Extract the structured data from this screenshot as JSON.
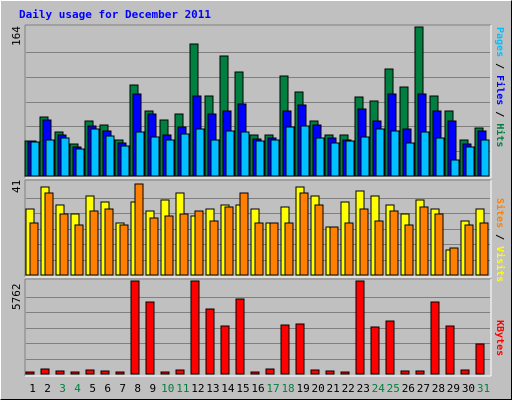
{
  "title": "Daily usage for December 2011",
  "colors": {
    "hits": "#008040",
    "files": "#0000ff",
    "pages": "#00c0ff",
    "visits": "#ffff00",
    "sites": "#ff8000",
    "kbytes": "#ff0000",
    "weekend_label": "#008040",
    "weekday_label": "#000000"
  },
  "chart_data": [
    {
      "type": "bar",
      "title": "Daily usage for December 2011",
      "panel": "hits_files_pages",
      "ylabel": "164",
      "ymax": 164,
      "x": [
        "1",
        "2",
        "3",
        "4",
        "5",
        "6",
        "7",
        "8",
        "9",
        "10",
        "11",
        "12",
        "13",
        "14",
        "15",
        "16",
        "17",
        "18",
        "19",
        "20",
        "21",
        "22",
        "23",
        "24",
        "25",
        "26",
        "27",
        "28",
        "29",
        "30",
        "31"
      ],
      "series": [
        {
          "name": "Hits",
          "values": [
            38,
            65,
            48,
            35,
            60,
            56,
            40,
            100,
            72,
            62,
            68,
            145,
            88,
            132,
            115,
            45,
            45,
            110,
            92,
            60,
            45,
            45,
            87,
            82,
            118,
            98,
            164,
            88,
            72,
            40,
            53
          ]
        },
        {
          "name": "Files",
          "values": [
            38,
            62,
            45,
            32,
            55,
            50,
            36,
            90,
            68,
            45,
            54,
            88,
            68,
            72,
            79,
            41,
            42,
            72,
            78,
            56,
            42,
            40,
            74,
            60,
            90,
            52,
            90,
            72,
            60,
            35,
            50
          ]
        },
        {
          "name": "Pages",
          "values": [
            37,
            40,
            42,
            30,
            52,
            44,
            33,
            48,
            43,
            40,
            46,
            52,
            40,
            50,
            48,
            38,
            40,
            54,
            55,
            42,
            36,
            38,
            43,
            52,
            50,
            36,
            48,
            42,
            18,
            32,
            40
          ]
        }
      ],
      "legend": [
        "Pages",
        "Files",
        "Hits"
      ]
    },
    {
      "type": "bar",
      "panel": "visits_sites",
      "ylabel": "41",
      "ymax": 41,
      "x": [
        "1",
        "2",
        "3",
        "4",
        "5",
        "6",
        "7",
        "8",
        "9",
        "10",
        "11",
        "12",
        "13",
        "14",
        "15",
        "16",
        "17",
        "18",
        "19",
        "20",
        "21",
        "22",
        "23",
        "24",
        "25",
        "26",
        "27",
        "28",
        "29",
        "30",
        "31"
      ],
      "series": [
        {
          "name": "Visits",
          "values": [
            29,
            39,
            31,
            27,
            35,
            32,
            23,
            32,
            28,
            33,
            36,
            26,
            29,
            31,
            31,
            29,
            23,
            30,
            39,
            35,
            21,
            32,
            37,
            35,
            31,
            27,
            33,
            29,
            11,
            24,
            29
          ]
        },
        {
          "name": "Sites",
          "values": [
            23,
            36,
            27,
            22,
            28,
            29,
            22,
            40,
            25,
            26,
            27,
            28,
            24,
            30,
            36,
            23,
            23,
            23,
            36,
            31,
            21,
            23,
            29,
            24,
            28,
            22,
            30,
            27,
            12,
            22,
            23
          ]
        }
      ],
      "legend": [
        "Sites",
        "Visits"
      ]
    },
    {
      "type": "bar",
      "panel": "kbytes",
      "ylabel": "5762",
      "ymax": 5762,
      "x": [
        "1",
        "2",
        "3",
        "4",
        "5",
        "6",
        "7",
        "8",
        "9",
        "10",
        "11",
        "12",
        "13",
        "14",
        "15",
        "16",
        "17",
        "18",
        "19",
        "20",
        "21",
        "22",
        "23",
        "24",
        "25",
        "26",
        "27",
        "28",
        "29",
        "30",
        "31"
      ],
      "series": [
        {
          "name": "KBytes",
          "values": [
            130,
            300,
            170,
            150,
            230,
            160,
            140,
            5762,
            4450,
            140,
            230,
            5762,
            4050,
            2980,
            4660,
            140,
            300,
            3010,
            3100,
            230,
            160,
            150,
            5762,
            2930,
            3310,
            180,
            210,
            4460,
            2980,
            230,
            1840
          ]
        }
      ],
      "legend": [
        "KBytes"
      ]
    }
  ],
  "right_labels": {
    "panel1": [
      {
        "text": "Pages",
        "key": "pages"
      },
      {
        "text": " / ",
        "key": "sep"
      },
      {
        "text": "Files",
        "key": "files"
      },
      {
        "text": " / ",
        "key": "sep"
      },
      {
        "text": "Hits",
        "key": "hits"
      }
    ],
    "panel2": [
      {
        "text": "Sites",
        "key": "sites"
      },
      {
        "text": " / ",
        "key": "sep"
      },
      {
        "text": "Visits",
        "key": "visits"
      }
    ],
    "panel3": [
      {
        "text": "KBytes",
        "key": "kbytes"
      }
    ]
  },
  "weekend_days": [
    "3",
    "4",
    "10",
    "11",
    "17",
    "18",
    "24",
    "25",
    "31"
  ]
}
